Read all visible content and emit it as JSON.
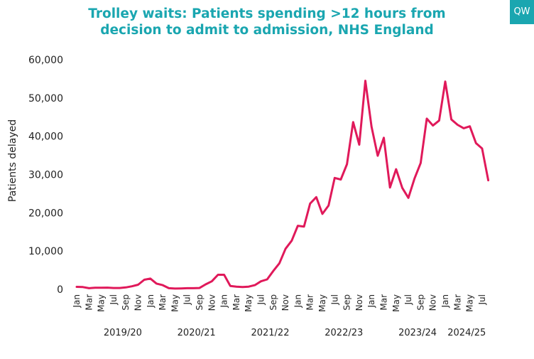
{
  "logo": "QW",
  "chart_data": {
    "type": "line",
    "title": "Trolley waits: Patients spending >12 hours from decision to admit to admission, NHS England",
    "title_line1": "Trolley waits: Patients spending >12 hours from",
    "title_line2": "decision to admit to admission, NHS England",
    "ylabel": "Patients delayed",
    "xlabel": "",
    "ylim": [
      0,
      60000
    ],
    "yticks": [
      0,
      10000,
      20000,
      30000,
      40000,
      50000,
      60000
    ],
    "ytick_labels": [
      "0",
      "10,000",
      "20,000",
      "30,000",
      "40,000",
      "50,000",
      "60,000"
    ],
    "x_tick_labels": [
      {
        "index": 0,
        "label": "Jan"
      },
      {
        "index": 2,
        "label": "Mar"
      },
      {
        "index": 4,
        "label": "May"
      },
      {
        "index": 6,
        "label": "Jul"
      },
      {
        "index": 8,
        "label": "Sep"
      },
      {
        "index": 10,
        "label": "Nov"
      },
      {
        "index": 12,
        "label": "Jan"
      },
      {
        "index": 14,
        "label": "Mar"
      },
      {
        "index": 16,
        "label": "May"
      },
      {
        "index": 18,
        "label": "Jul"
      },
      {
        "index": 20,
        "label": "Sep"
      },
      {
        "index": 22,
        "label": "Nov"
      },
      {
        "index": 24,
        "label": "Jan"
      },
      {
        "index": 26,
        "label": "Mar"
      },
      {
        "index": 28,
        "label": "May"
      },
      {
        "index": 30,
        "label": "Jul"
      },
      {
        "index": 32,
        "label": "Sep"
      },
      {
        "index": 34,
        "label": "Nov"
      },
      {
        "index": 36,
        "label": "Jan"
      },
      {
        "index": 38,
        "label": "Mar"
      },
      {
        "index": 40,
        "label": "May"
      },
      {
        "index": 42,
        "label": "Jul"
      },
      {
        "index": 44,
        "label": "Sep"
      },
      {
        "index": 46,
        "label": "Nov"
      },
      {
        "index": 48,
        "label": "Jan"
      },
      {
        "index": 50,
        "label": "Mar"
      },
      {
        "index": 52,
        "label": "May"
      },
      {
        "index": 54,
        "label": "Jul"
      },
      {
        "index": 56,
        "label": "Sep"
      },
      {
        "index": 58,
        "label": "Nov"
      },
      {
        "index": 60,
        "label": "Jan"
      },
      {
        "index": 62,
        "label": "Mar"
      },
      {
        "index": 64,
        "label": "May"
      },
      {
        "index": 66,
        "label": "Jul"
      }
    ],
    "year_labels": [
      {
        "index": 7.5,
        "label": "2019/20"
      },
      {
        "index": 19.5,
        "label": "2020/21"
      },
      {
        "index": 31.5,
        "label": "2021/22"
      },
      {
        "index": 43.5,
        "label": "2022/23"
      },
      {
        "index": 55.5,
        "label": "2023/24"
      },
      {
        "index": 63.5,
        "label": "2024/25"
      }
    ],
    "series": [
      {
        "name": "Patients delayed",
        "color": "#e0195a",
        "values": [
          650,
          600,
          300,
          400,
          400,
          450,
          350,
          350,
          500,
          800,
          1200,
          2500,
          2800,
          1500,
          1100,
          300,
          200,
          250,
          300,
          300,
          350,
          1300,
          2100,
          3800,
          3800,
          900,
          700,
          600,
          700,
          1100,
          2100,
          2600,
          4800,
          6800,
          10600,
          12700,
          16600,
          16400,
          22400,
          24100,
          19700,
          21900,
          29100,
          28700,
          32700,
          43700,
          37800,
          54500,
          42500,
          34900,
          39600,
          26600,
          31400,
          26500,
          23900,
          29000,
          33000,
          44600,
          42800,
          44100,
          54300,
          44400,
          43000,
          42100,
          42600,
          38200,
          36800,
          28500
        ]
      }
    ]
  }
}
